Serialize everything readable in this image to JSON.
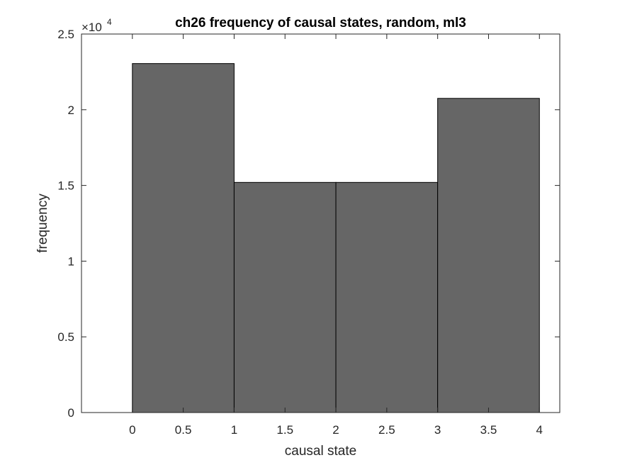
{
  "chart_data": {
    "type": "bar",
    "title": "ch26 frequency of causal states, random, ml3",
    "xlabel": "causal state",
    "ylabel": "frequency",
    "bins": [
      {
        "start": 0,
        "end": 1,
        "value": 23050
      },
      {
        "start": 1,
        "end": 2,
        "value": 15200
      },
      {
        "start": 2,
        "end": 3,
        "value": 15200
      },
      {
        "start": 3,
        "end": 4,
        "value": 20750
      }
    ],
    "xlim": [
      -0.5,
      4.2
    ],
    "ylim": [
      0,
      25000
    ],
    "xticks": [
      0,
      0.5,
      1,
      1.5,
      2,
      2.5,
      3,
      3.5,
      4
    ],
    "xtick_labels": [
      "0",
      "0.5",
      "1",
      "1.5",
      "2",
      "2.5",
      "3",
      "3.5",
      "4"
    ],
    "yticks": [
      0,
      5000,
      10000,
      15000,
      20000,
      25000
    ],
    "ytick_labels": [
      "0",
      "0.5",
      "1",
      "1.5",
      "2",
      "2.5"
    ],
    "y_exponent_base": "×10",
    "y_exponent_power": "4",
    "bar_color": "#666666",
    "bar_edge_color": "#000000",
    "grid": false,
    "box": true
  }
}
